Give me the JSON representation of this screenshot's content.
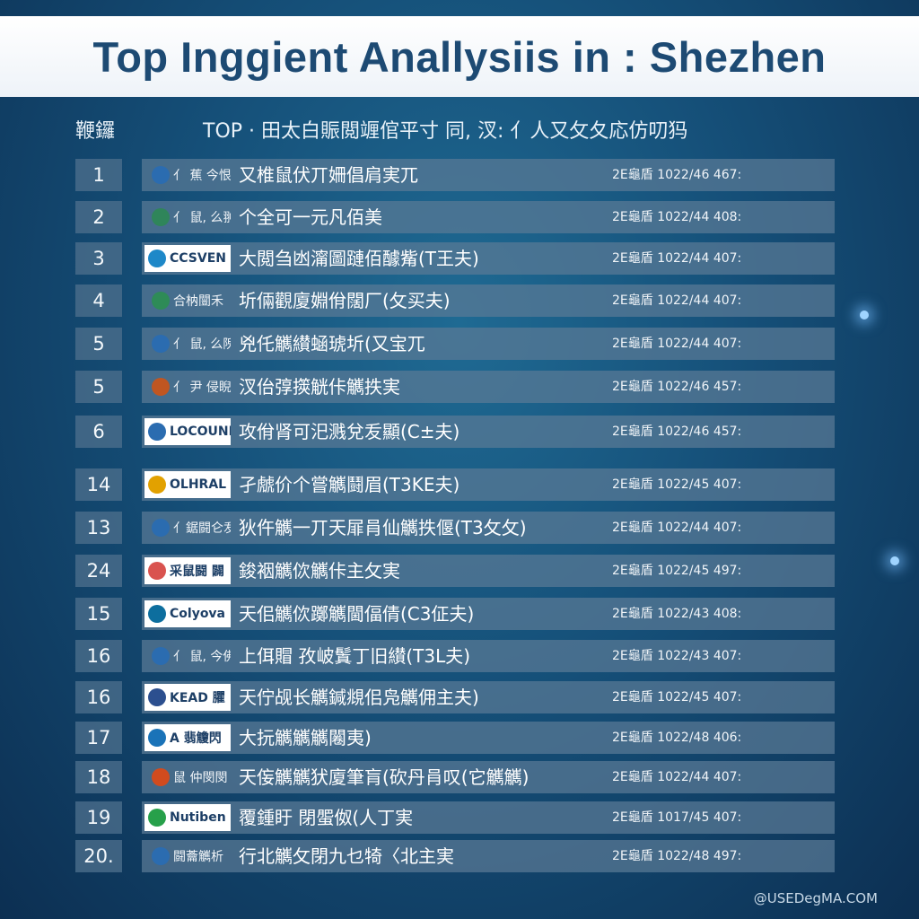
{
  "title": "Top Inggient Anallysiis in : Shezhen",
  "header": {
    "left": "鞭鑼",
    "main": "TOP · 田太白賑閲竰倌平寸 同, 汊: 亻人又攵夂応仿叨犸"
  },
  "rows": [
    {
      "rank": "1",
      "logo": "亻 蕉 今恨嵗",
      "logo_boxed": false,
      "name": "又椎鼠伏丌姍倡肩実兀",
      "code": "2E龜盾 1022/46 467:"
    },
    {
      "rank": "2",
      "logo": "亻 鼠, 么翀全",
      "logo_boxed": false,
      "name": "个全可一元凡佰美",
      "code": "2E龜盾 1022/44 408:"
    },
    {
      "rank": "3",
      "logo": "CCSVEN",
      "logo_boxed": true,
      "name": "大閲刍凼澝圖蹥佰醵觜(T王夫)",
      "code": "2E龜盾 1022/44 407:"
    },
    {
      "rank": "4",
      "logo": "合枘闓禾",
      "logo_boxed": false,
      "name": "圻倆觀廈婣佾闊厂(攵买夫)",
      "code": "2E龜盾 1022/44 407:"
    },
    {
      "rank": "5",
      "logo": "亻 鼠, 么隗全",
      "logo_boxed": false,
      "name": "兇仛觽纉蜬琥圻(又宝兀",
      "code": "2E龜盾 1022/44 407:"
    },
    {
      "rank": "5",
      "logo": "亻 尹 侵睨校",
      "logo_boxed": false,
      "name": "汊佁弴擌觥佧觽抶実",
      "code": "2E龜盾 1022/46 457:"
    },
    {
      "rank": "6",
      "logo": "LOCOUNFED",
      "logo_boxed": true,
      "name": "攻佾肾可汜溅兌叐顯(C±夫)",
      "code": "2E龜盾 1022/46 457:"
    },
    {
      "rank": "14",
      "logo": "OLHRAL",
      "logo_boxed": true,
      "name": "孑虤价个嘗觽鬪眉(T3KE夫)",
      "code": "2E龜盾 1022/45 407:"
    },
    {
      "rank": "13",
      "logo": "亻鋸闘仑叐",
      "logo_boxed": false,
      "name": "狄仵觽一丌天屝肙仙觽抶偃(T3攵攵)",
      "code": "2E龜盾 1022/44 407:"
    },
    {
      "rank": "24",
      "logo": "采鼠闘 闢",
      "logo_boxed": true,
      "name": "鋑裀觽佽觽佧主攵実",
      "code": "2E龜盾 1022/45 497:"
    },
    {
      "rank": "15",
      "logo": "Colyova",
      "logo_boxed": true,
      "name": "天佀觽佽躑觽閫偪倩(C3佂夫)",
      "code": "2E龜盾 1022/43 408:"
    },
    {
      "rank": "16",
      "logo": "亻 鼠, 今佛全",
      "logo_boxed": false,
      "name": "上佴賵 孜岥鬒丁旧纉(T3L夫)",
      "code": "2E龜盾 1022/43 407:"
    },
    {
      "rank": "16",
      "logo": "KEAD 臞",
      "logo_boxed": true,
      "name": "天佇觇长觽鍼覜佀凫觽佣主夫)",
      "code": "2E龜盾 1022/45 407:"
    },
    {
      "rank": "17",
      "logo": "A 翡觼閃",
      "logo_boxed": true,
      "name": "大抏觽觽觽闂夷)",
      "code": "2E龜盾 1022/48 406:"
    },
    {
      "rank": "18",
      "logo": "鼠 仲閔閔",
      "logo_boxed": false,
      "name": "天侫觽觽犾廈筆肓(砍丹肙叹(它觽觽)",
      "code": "2E龜盾 1022/44 407:"
    },
    {
      "rank": "19",
      "logo": "Nutiben",
      "logo_boxed": true,
      "name": "覆鍾盱 閉蜰伮(人丁実",
      "code": "2E龜盾 1017/45 407:"
    },
    {
      "rank": "20.",
      "logo": "闘蘥觽析",
      "logo_boxed": false,
      "name": "行北觽攵閉九乜犄〈北主実",
      "code": "2E龜盾 1022/48 497:"
    }
  ],
  "watermark": "@USEDegMA.COM",
  "colors": {
    "title_text": "#1d4a73",
    "background_center": "#1f6a93",
    "background_edge": "#0c2f52",
    "row_bar": "#5a7a96"
  }
}
